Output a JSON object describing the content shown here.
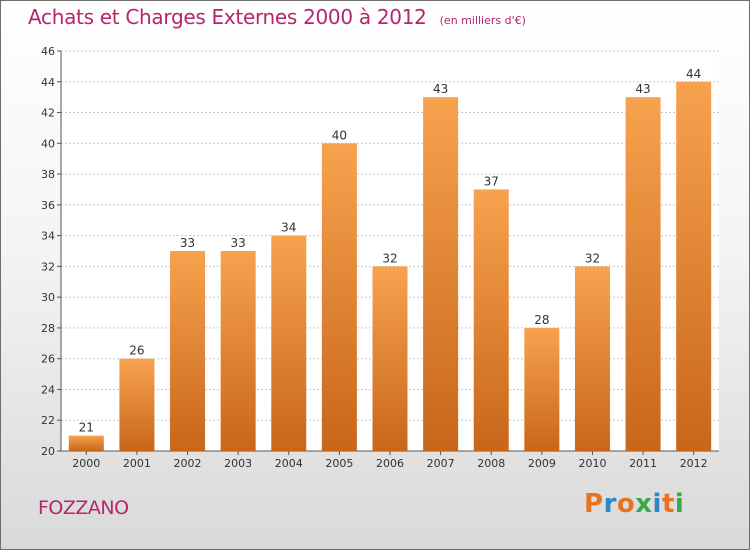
{
  "header": {
    "title": "Achats et Charges Externes 2000 à 2012",
    "subtitle": "(en milliers d'€)"
  },
  "footer": {
    "town": "FOZZANO",
    "logo_text": "Proxiti"
  },
  "colors": {
    "title": "#b5266b",
    "bar_top": "#f7a24f",
    "bar_bottom": "#c8661a",
    "grid": "#c8c8c8",
    "logo": [
      "#e8731f",
      "#2e86c8",
      "#e8731f",
      "#3aa845",
      "#2e86c8",
      "#e8731f",
      "#3aa845"
    ]
  },
  "chart_data": {
    "type": "bar",
    "categories": [
      "2000",
      "2001",
      "2002",
      "2003",
      "2004",
      "2005",
      "2006",
      "2007",
      "2008",
      "2009",
      "2010",
      "2011",
      "2012"
    ],
    "values": [
      21,
      26,
      33,
      33,
      34,
      40,
      32,
      43,
      37,
      28,
      32,
      43,
      44
    ],
    "title": "Achats et Charges Externes 2000 à 2012",
    "ylim": [
      20,
      46
    ],
    "yticks": [
      20,
      22,
      24,
      26,
      28,
      30,
      32,
      34,
      36,
      38,
      40,
      42,
      44,
      46
    ],
    "grid": true,
    "data_labels": true
  }
}
